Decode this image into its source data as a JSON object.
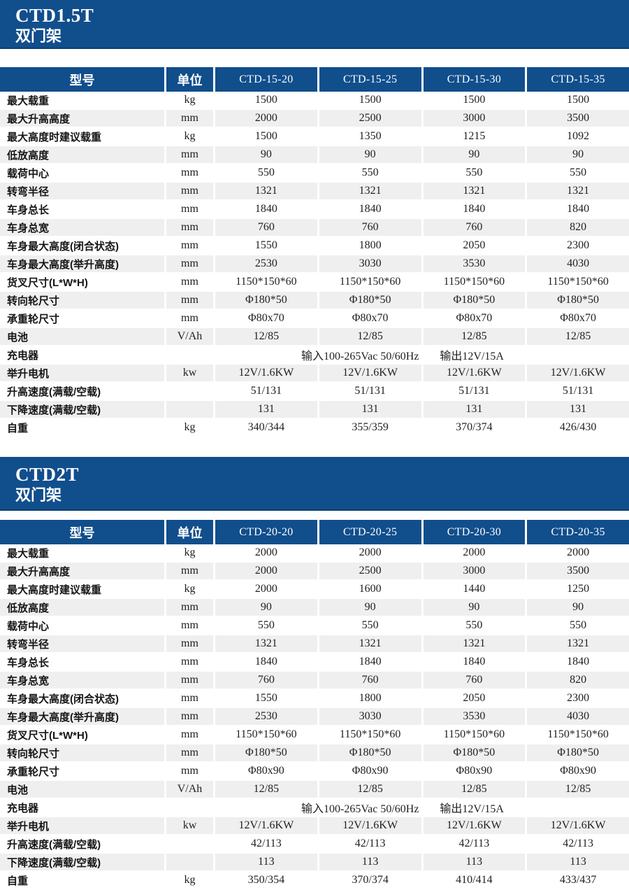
{
  "accent": {
    "banner_blue": "#114E8C",
    "stripe_gray": "#EFEFEF",
    "text_dark": "#1b1b1b"
  },
  "sections": [
    {
      "banner": {
        "title": "CTD1.5T",
        "subtitle": "双门架"
      },
      "table": {
        "headers": [
          "型号",
          "单位",
          "CTD-15-20",
          "CTD-15-25",
          "CTD-15-30",
          "CTD-15-35"
        ],
        "rows": [
          {
            "label": "最大载重",
            "unit": "kg",
            "values": [
              "1500",
              "1500",
              "1500",
              "1500"
            ]
          },
          {
            "label": "最大升高高度",
            "unit": "mm",
            "values": [
              "2000",
              "2500",
              "3000",
              "3500"
            ]
          },
          {
            "label": "最大高度时建议载重",
            "unit": "kg",
            "values": [
              "1500",
              "1350",
              "1215",
              "1092"
            ]
          },
          {
            "label": "低放高度",
            "unit": "mm",
            "values": [
              "90",
              "90",
              "90",
              "90"
            ]
          },
          {
            "label": "载荷中心",
            "unit": "mm",
            "values": [
              "550",
              "550",
              "550",
              "550"
            ]
          },
          {
            "label": "转弯半径",
            "unit": "mm",
            "values": [
              "1321",
              "1321",
              "1321",
              "1321"
            ]
          },
          {
            "label": "车身总长",
            "unit": "mm",
            "values": [
              "1840",
              "1840",
              "1840",
              "1840"
            ]
          },
          {
            "label": "车身总宽",
            "unit": "mm",
            "values": [
              "760",
              "760",
              "760",
              "820"
            ]
          },
          {
            "label": "车身最大高度(闭合状态)",
            "unit": "mm",
            "values": [
              "1550",
              "1800",
              "2050",
              "2300"
            ]
          },
          {
            "label": "车身最大高度(举升高度)",
            "unit": "mm",
            "values": [
              "2530",
              "3030",
              "3530",
              "4030"
            ]
          },
          {
            "label": "货叉尺寸(L*W*H)",
            "unit": "mm",
            "values": [
              "1150*150*60",
              "1150*150*60",
              "1150*150*60",
              "1150*150*60"
            ]
          },
          {
            "label": "转向轮尺寸",
            "unit": "mm",
            "values": [
              "Φ180*50",
              "Φ180*50",
              "Φ180*50",
              "Φ180*50"
            ]
          },
          {
            "label": "承重轮尺寸",
            "unit": "mm",
            "values": [
              "Φ80x70",
              "Φ80x70",
              "Φ80x70",
              "Φ80x70"
            ]
          },
          {
            "label": "电池",
            "unit": "V/Ah",
            "values": [
              "12/85",
              "12/85",
              "12/85",
              "12/85"
            ]
          },
          {
            "label": "充电器",
            "unit": "",
            "span_values": [
              "输入100-265Vac 50/60Hz",
              "输出12V/15A"
            ]
          },
          {
            "label": "举升电机",
            "unit": "kw",
            "values": [
              "12V/1.6KW",
              "12V/1.6KW",
              "12V/1.6KW",
              "12V/1.6KW"
            ]
          },
          {
            "label": "升高速度(满载/空载)",
            "unit": "",
            "values": [
              "51/131",
              "51/131",
              "51/131",
              "51/131"
            ]
          },
          {
            "label": "下降速度(满载/空载)",
            "unit": "",
            "values": [
              "131",
              "131",
              "131",
              "131"
            ]
          },
          {
            "label": "自重",
            "unit": "kg",
            "values": [
              "340/344",
              "355/359",
              "370/374",
              "426/430"
            ]
          }
        ]
      }
    },
    {
      "banner": {
        "title": "CTD2T",
        "subtitle": "双门架"
      },
      "table": {
        "headers": [
          "型号",
          "单位",
          "CTD-20-20",
          "CTD-20-25",
          "CTD-20-30",
          "CTD-20-35"
        ],
        "rows": [
          {
            "label": "最大载重",
            "unit": "kg",
            "values": [
              "2000",
              "2000",
              "2000",
              "2000"
            ]
          },
          {
            "label": "最大升高高度",
            "unit": "mm",
            "values": [
              "2000",
              "2500",
              "3000",
              "3500"
            ]
          },
          {
            "label": "最大高度时建议载重",
            "unit": "kg",
            "values": [
              "2000",
              "1600",
              "1440",
              "1250"
            ]
          },
          {
            "label": "低放高度",
            "unit": "mm",
            "values": [
              "90",
              "90",
              "90",
              "90"
            ]
          },
          {
            "label": "载荷中心",
            "unit": "mm",
            "values": [
              "550",
              "550",
              "550",
              "550"
            ]
          },
          {
            "label": "转弯半径",
            "unit": "mm",
            "values": [
              "1321",
              "1321",
              "1321",
              "1321"
            ]
          },
          {
            "label": "车身总长",
            "unit": "mm",
            "values": [
              "1840",
              "1840",
              "1840",
              "1840"
            ]
          },
          {
            "label": "车身总宽",
            "unit": "mm",
            "values": [
              "760",
              "760",
              "760",
              "820"
            ]
          },
          {
            "label": "车身最大高度(闭合状态)",
            "unit": "mm",
            "values": [
              "1550",
              "1800",
              "2050",
              "2300"
            ]
          },
          {
            "label": "车身最大高度(举升高度)",
            "unit": "mm",
            "values": [
              "2530",
              "3030",
              "3530",
              "4030"
            ]
          },
          {
            "label": "货叉尺寸(L*W*H)",
            "unit": "mm",
            "values": [
              "1150*150*60",
              "1150*150*60",
              "1150*150*60",
              "1150*150*60"
            ]
          },
          {
            "label": "转向轮尺寸",
            "unit": "mm",
            "values": [
              "Φ180*50",
              "Φ180*50",
              "Φ180*50",
              "Φ180*50"
            ]
          },
          {
            "label": "承重轮尺寸",
            "unit": "mm",
            "values": [
              "Φ80x90",
              "Φ80x90",
              "Φ80x90",
              "Φ80x90"
            ]
          },
          {
            "label": "电池",
            "unit": "V/Ah",
            "values": [
              "12/85",
              "12/85",
              "12/85",
              "12/85"
            ]
          },
          {
            "label": "充电器",
            "unit": "",
            "span_values": [
              "输入100-265Vac 50/60Hz",
              "输出12V/15A"
            ]
          },
          {
            "label": "举升电机",
            "unit": "kw",
            "values": [
              "12V/1.6KW",
              "12V/1.6KW",
              "12V/1.6KW",
              "12V/1.6KW"
            ]
          },
          {
            "label": "升高速度(满载/空载)",
            "unit": "",
            "values": [
              "42/113",
              "42/113",
              "42/113",
              "42/113"
            ]
          },
          {
            "label": "下降速度(满载/空载)",
            "unit": "",
            "values": [
              "113",
              "113",
              "113",
              "113"
            ]
          },
          {
            "label": "自重",
            "unit": "kg",
            "values": [
              "350/354",
              "370/374",
              "410/414",
              "433/437"
            ]
          }
        ]
      }
    }
  ]
}
